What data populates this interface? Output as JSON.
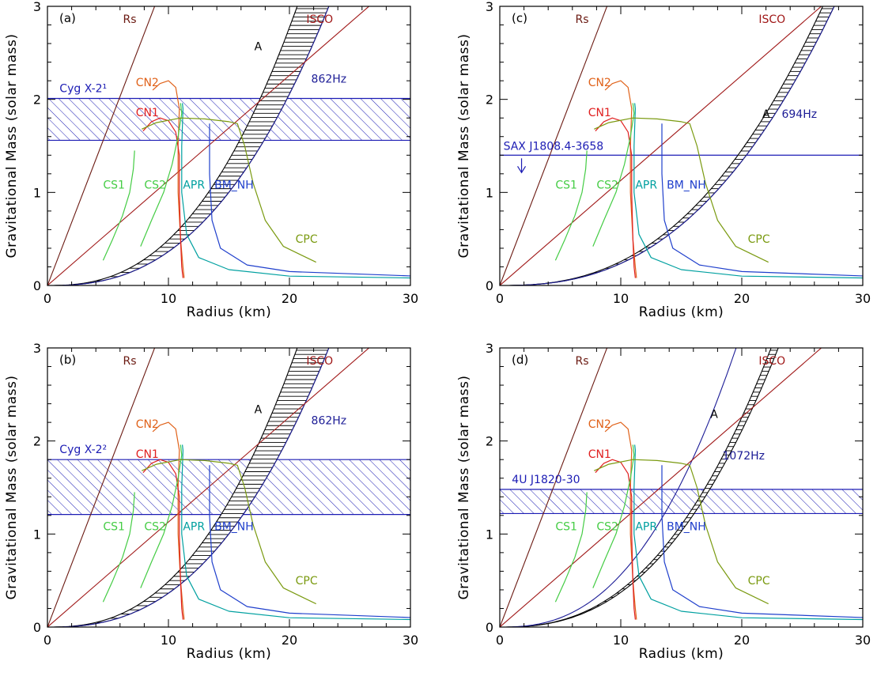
{
  "chart_data": [
    {
      "type": "line",
      "panel_label": "(a)",
      "xlabel": "Radius (km)",
      "ylabel": "Gravitational Mass (solar mass)",
      "xlim": [
        0,
        30
      ],
      "ylim": [
        0,
        3
      ],
      "x_ticks": [
        0,
        10,
        20,
        30
      ],
      "y_ticks": [
        0,
        1,
        2,
        3
      ],
      "constraint": {
        "name": "Cyg X-2¹",
        "type": "band",
        "m_min": 1.56,
        "m_max": 2.01
      },
      "spin_curve": {
        "label": "862Hz",
        "coef": 0.00115
      },
      "hatched_region": {
        "label": "A",
        "coef_min": 0.00115,
        "coef_max": 0.00155
      }
    },
    {
      "type": "line",
      "panel_label": "(b)",
      "xlabel": "Radius (km)",
      "ylabel": "Gravitational Mass (solar mass)",
      "xlim": [
        0,
        30
      ],
      "ylim": [
        0,
        3
      ],
      "x_ticks": [
        0,
        10,
        20,
        30
      ],
      "y_ticks": [
        0,
        1,
        2,
        3
      ],
      "constraint": {
        "name": "Cyg X-2²",
        "type": "band",
        "m_min": 1.21,
        "m_max": 1.8
      },
      "spin_curve": {
        "label": "862Hz",
        "coef": 0.00115
      },
      "hatched_region": {
        "label": "A",
        "coef_min": 0.00115,
        "coef_max": 0.00155
      }
    },
    {
      "type": "line",
      "panel_label": "(c)",
      "xlabel": "Radius (km)",
      "ylabel": "Gravitational Mass (solar mass)",
      "xlim": [
        0,
        30
      ],
      "ylim": [
        0,
        3
      ],
      "x_ticks": [
        0,
        10,
        20,
        30
      ],
      "y_ticks": [
        0,
        1,
        2,
        3
      ],
      "constraint": {
        "name": "SAX J1808.4-3658",
        "type": "upper_limit",
        "m": 1.4
      },
      "spin_curve": {
        "label": "694Hz",
        "coef": 0.000747
      },
      "hatched_region": {
        "label": "A",
        "coef_min": 0.000747,
        "coef_max": 0.000815
      }
    },
    {
      "type": "line",
      "panel_label": "(d)",
      "xlabel": "Radius (km)",
      "ylabel": "Gravitational Mass (solar mass)",
      "xlim": [
        0,
        30
      ],
      "ylim": [
        0,
        3
      ],
      "x_ticks": [
        0,
        10,
        20,
        30
      ],
      "y_ticks": [
        0,
        1,
        2,
        3
      ],
      "constraint": {
        "name": "4U J1820-30",
        "type": "band",
        "m_min": 1.22,
        "m_max": 1.48
      },
      "spin_curve": {
        "label": "1072Hz",
        "coef": 0.00178
      },
      "hatched_region": {
        "label": "A",
        "coef_min": 0.00118,
        "coef_max": 0.00126
      }
    }
  ],
  "shared": {
    "reference_lines": [
      {
        "label": "Rs",
        "color": "#6b1a12",
        "m_per_km": 0.3386
      },
      {
        "label": "ISCO",
        "color": "#a01818",
        "m_per_km": 0.1129
      }
    ],
    "eos_curves": [
      {
        "label": "CN2",
        "color": "#e0621a",
        "points": [
          [
            11.3,
            0.08
          ],
          [
            11.2,
            0.2
          ],
          [
            11.0,
            0.5
          ],
          [
            10.8,
            1.0
          ],
          [
            10.8,
            1.5
          ],
          [
            10.9,
            1.9
          ],
          [
            10.6,
            2.13
          ],
          [
            10.0,
            2.2
          ],
          [
            9.3,
            2.17
          ],
          [
            8.7,
            2.1
          ]
        ]
      },
      {
        "label": "CN1",
        "color": "#e02020",
        "points": [
          [
            11.2,
            0.08
          ],
          [
            11.1,
            0.2
          ],
          [
            11.0,
            0.5
          ],
          [
            10.9,
            1.0
          ],
          [
            10.9,
            1.4
          ],
          [
            10.6,
            1.65
          ],
          [
            10.0,
            1.77
          ],
          [
            9.3,
            1.8
          ],
          [
            8.6,
            1.76
          ],
          [
            7.9,
            1.66
          ]
        ]
      },
      {
        "label": "CS1",
        "color": "#44cc44",
        "points": [
          [
            4.6,
            0.27
          ],
          [
            5.4,
            0.5
          ],
          [
            6.2,
            0.75
          ],
          [
            6.8,
            1.0
          ],
          [
            7.1,
            1.25
          ],
          [
            7.2,
            1.45
          ]
        ]
      },
      {
        "label": "CS2",
        "color": "#44cc44",
        "points": [
          [
            7.7,
            0.42
          ],
          [
            8.6,
            0.7
          ],
          [
            9.6,
            1.0
          ],
          [
            10.3,
            1.3
          ],
          [
            10.8,
            1.6
          ],
          [
            11.1,
            1.85
          ],
          [
            11.0,
            1.96
          ]
        ]
      },
      {
        "label": "APR",
        "color": "#00a0a0",
        "points": [
          [
            30.5,
            0.08
          ],
          [
            20.0,
            0.1
          ],
          [
            15.0,
            0.17
          ],
          [
            12.5,
            0.3
          ],
          [
            11.5,
            0.55
          ],
          [
            11.1,
            1.0
          ],
          [
            11.1,
            1.5
          ],
          [
            11.2,
            1.9
          ],
          [
            11.15,
            1.96
          ]
        ]
      },
      {
        "label": "BM_NH",
        "color": "#1f3fcc",
        "points": [
          [
            30.5,
            0.1
          ],
          [
            20.0,
            0.15
          ],
          [
            16.5,
            0.22
          ],
          [
            14.3,
            0.4
          ],
          [
            13.6,
            0.7
          ],
          [
            13.4,
            1.2
          ],
          [
            13.4,
            1.74
          ]
        ]
      },
      {
        "label": "CPC",
        "color": "#7a9a10",
        "points": [
          [
            7.8,
            1.68
          ],
          [
            9.0,
            1.75
          ],
          [
            11.0,
            1.8
          ],
          [
            13.0,
            1.79
          ],
          [
            15.0,
            1.76
          ],
          [
            15.7,
            1.74
          ],
          [
            16.3,
            1.5
          ],
          [
            17.0,
            1.1
          ],
          [
            18.0,
            0.7
          ],
          [
            19.5,
            0.42
          ],
          [
            22.2,
            0.25
          ]
        ]
      }
    ],
    "colors": {
      "constraint": "#1c1cb4",
      "hatched_region": "#000000"
    }
  }
}
